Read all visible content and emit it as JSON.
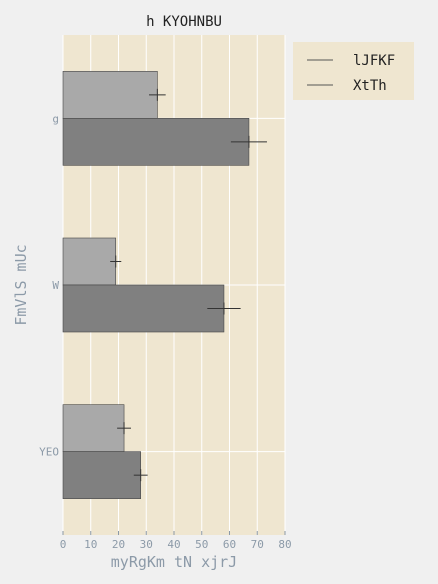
{
  "chart_data": {
    "type": "bar",
    "orientation": "horizontal",
    "title": "h KYOHNBU",
    "xlabel": "myRgKm tN xjrJ",
    "ylabel": "FmVlS mUc",
    "categories": [
      "g",
      "W",
      "YEO"
    ],
    "xlim": [
      0,
      80
    ],
    "xticks": [
      0,
      10,
      20,
      30,
      40,
      50,
      60,
      70,
      80
    ],
    "grid": true,
    "legend_position": "top-right",
    "background": "#efe6d0",
    "series": [
      {
        "name": "lJFKF",
        "color": "#a9a9a9",
        "values": [
          34,
          19,
          22
        ],
        "errors": [
          3,
          2,
          2.5
        ]
      },
      {
        "name": "XtTh",
        "color": "#808080",
        "values": [
          67,
          58,
          28
        ],
        "errors": [
          6.5,
          6,
          2.5
        ]
      }
    ]
  }
}
